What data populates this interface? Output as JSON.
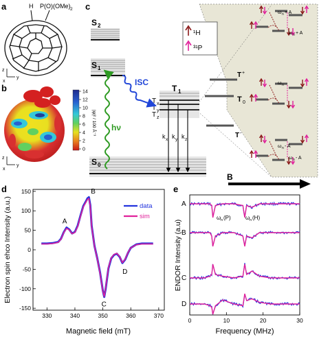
{
  "panels": {
    "a": {
      "label": "a",
      "molecule_labels": [
        "H",
        "P(O)(OMe)",
        "2"
      ],
      "axes": [
        "z",
        "x",
        "y"
      ]
    },
    "b": {
      "label": "b",
      "colorbar_label": "|ψ|² / 100 Å⁻³",
      "colorbar_ticks": [
        "14",
        "12",
        "10",
        "8",
        "6",
        "4",
        "2",
        "0"
      ],
      "colors": {
        "max": "#1e3f9c",
        "mid": "#35c8d8",
        "low": "#e5e020",
        "min": "#d42020"
      },
      "axes": [
        "z",
        "x",
        "y"
      ]
    },
    "c": {
      "label": "c",
      "levels": {
        "s2": "S",
        "s2_sub": "2",
        "s1": "S",
        "s1_sub": "1",
        "s0": "S",
        "s0_sub": "0",
        "t1": "T",
        "t1_sub": "1",
        "tx": "T",
        "tx_sub": "x",
        "ty": "T",
        "ty_sub": "y",
        "tz": "T",
        "tz_sub": "z"
      },
      "isc": "ISC",
      "hv": "hν",
      "rates": [
        [
          "k",
          "x"
        ],
        [
          "k",
          "y"
        ],
        [
          "k",
          "z"
        ]
      ],
      "field": "B",
      "sublevels": {
        "tplus": "T",
        "tplus_sup": "+",
        "t0": "T",
        "t0_sub": "0",
        "tminus": "T",
        "tminus_sup": "-"
      },
      "legend": {
        "h": "¹H",
        "p": "³¹P"
      },
      "transitions": {
        "top_a": "ω",
        "top_a_sub": "n",
        "top_a_rest": " + A",
        "top_b": "ω",
        "top_b_sub": "n",
        "top_b_rest": " + A",
        "mid": "ω",
        "mid_sub": "n",
        "bot_a": "ω",
        "bot_a_sub": "n",
        "bot_a_rest": " - A",
        "bot_b": "ω",
        "bot_b_sub": "n",
        "bot_b_rest": " - A"
      },
      "colors": {
        "green": "#2e9a22",
        "blue": "#2146d8",
        "magenta": "#e0209a",
        "darkred": "#8b1a1a",
        "panel_bg": "#e8e6d6"
      }
    },
    "d": {
      "label": "d",
      "legend": [
        "data",
        "sim"
      ]
    },
    "e": {
      "label": "e",
      "traces": [
        "A",
        "B",
        "C",
        "D"
      ],
      "annotations": [
        [
          "ω",
          "n",
          "(P)"
        ],
        [
          "ω",
          "n",
          "(H)"
        ]
      ]
    }
  },
  "chart_data": [
    {
      "panel": "d",
      "type": "line",
      "xlabel": "Magnetic field (mT)",
      "ylabel": "Electron spin ehco Intensity (a.u.)",
      "xlim": [
        325,
        372
      ],
      "ylim": [
        -155,
        155
      ],
      "xticks": [
        330,
        340,
        350,
        360,
        370
      ],
      "yticks": [
        -150,
        -100,
        -50,
        0,
        50,
        100,
        150
      ],
      "grid": false,
      "legend_position": "top-right",
      "peak_labels": [
        {
          "text": "A",
          "x": 337.5,
          "y": 57
        },
        {
          "text": "B",
          "x": 345,
          "y": 137
        },
        {
          "text": "C",
          "x": 350.5,
          "y": -121
        },
        {
          "text": "D",
          "x": 357.5,
          "y": -37
        }
      ],
      "series": [
        {
          "name": "data",
          "color": "#2233dd",
          "x": [
            328,
            330,
            332,
            334,
            335,
            336,
            337,
            338,
            339,
            340,
            341,
            342,
            343,
            344,
            344.5,
            345,
            345.5,
            346,
            347,
            348,
            349,
            350,
            350.5,
            351,
            352,
            353,
            354,
            355,
            356,
            357,
            358,
            359,
            360,
            362,
            364,
            366,
            368
          ],
          "y": [
            16,
            16,
            17,
            20,
            28,
            45,
            57,
            52,
            42,
            46,
            62,
            88,
            112,
            125,
            132,
            135,
            115,
            62,
            10,
            -22,
            -58,
            -105,
            -121,
            -100,
            -48,
            -22,
            -13,
            -10,
            -18,
            -34,
            -25,
            -8,
            5,
            14,
            16,
            16,
            16
          ]
        },
        {
          "name": "sim",
          "color": "#e0209a",
          "x": [
            328,
            330,
            332,
            334,
            335,
            336,
            337,
            338,
            339,
            340,
            341,
            342,
            343,
            344,
            344.5,
            345,
            345.5,
            346,
            347,
            348,
            349,
            350,
            350.5,
            351,
            352,
            353,
            354,
            355,
            356,
            357,
            358,
            359,
            360,
            362,
            364,
            366,
            368
          ],
          "y": [
            15,
            15,
            16,
            19,
            27,
            44,
            55,
            51,
            41,
            45,
            60,
            86,
            110,
            123,
            129,
            132,
            112,
            60,
            9,
            -23,
            -60,
            -106,
            -120,
            -98,
            -46,
            -21,
            -12,
            -9,
            -17,
            -33,
            -24,
            -7,
            5,
            13,
            15,
            15,
            15
          ]
        }
      ]
    },
    {
      "panel": "e",
      "type": "line",
      "xlabel": "Frequency (MHz)",
      "ylabel": "ENDOR Intensity (a.u)",
      "xlim": [
        0,
        30
      ],
      "xticks": [
        0,
        10,
        20,
        30
      ],
      "grid": false,
      "series": [
        {
          "name": "A",
          "x": [
            0,
            2,
            4,
            5.5,
            6,
            6.3,
            7,
            9,
            12,
            14.5,
            15,
            15.5,
            17,
            19,
            22,
            26,
            30
          ],
          "y": [
            0,
            0,
            0,
            0,
            -0.5,
            -4,
            -0.5,
            0,
            0,
            -0.5,
            -4,
            -0.5,
            -1,
            0,
            0,
            0,
            0
          ]
        },
        {
          "name": "B",
          "x": [
            0,
            2,
            4,
            5.5,
            6,
            6.3,
            7,
            9,
            12,
            14.5,
            15,
            15.5,
            17,
            19,
            22,
            26,
            30
          ],
          "y": [
            0,
            0,
            0,
            0,
            -1,
            -4,
            -1,
            0,
            0,
            -1,
            -4,
            -1,
            -1.5,
            0,
            0,
            0,
            0
          ]
        },
        {
          "name": "C",
          "x": [
            0,
            2,
            4,
            5.5,
            6,
            6.3,
            7,
            9,
            12,
            14.5,
            15,
            15.5,
            17,
            19,
            22,
            26,
            30
          ],
          "y": [
            0,
            0,
            0,
            0.5,
            1,
            4,
            1,
            0.5,
            0,
            0.5,
            4,
            1,
            2,
            0.5,
            0,
            0,
            0
          ]
        },
        {
          "name": "D",
          "x": [
            0,
            2,
            4,
            5.5,
            6,
            6.3,
            7,
            9,
            12,
            14.5,
            15,
            15.5,
            17,
            19,
            22,
            26,
            30
          ],
          "y": [
            0,
            0,
            0,
            -0.5,
            -1,
            -3,
            -0.5,
            1.2,
            0,
            -0.5,
            3,
            1,
            1.5,
            0.5,
            0,
            0,
            0
          ]
        }
      ]
    }
  ]
}
